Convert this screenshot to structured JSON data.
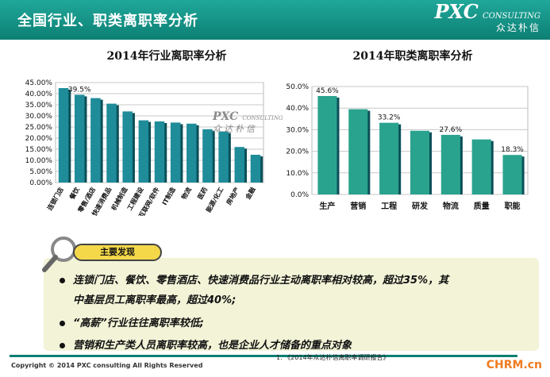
{
  "header": {
    "title": "全国行业、职类离职率分析",
    "logo_main": "PXC",
    "logo_sub": "CONSULTING",
    "logo_cn": "众达朴信"
  },
  "watermark": {
    "main": "PXC",
    "sub": "CONSULTING",
    "cn": "众达朴信"
  },
  "chart_data": [
    {
      "type": "bar",
      "title": "2014年行业离职率分析",
      "categories": [
        "连锁门店",
        "餐饮",
        "零售/酒店",
        "快速消费品",
        "机械制造",
        "工程建设",
        "互联网/软件",
        "IT制造",
        "物流",
        "医药",
        "能源/化工",
        "房地产",
        "金融"
      ],
      "values": [
        42.5,
        39.5,
        38.0,
        35.5,
        32.0,
        28.0,
        27.5,
        27.0,
        26.5,
        24.0,
        23.0,
        16.0,
        12.5
      ],
      "data_labels": [
        null,
        "39.5%",
        null,
        null,
        null,
        null,
        null,
        null,
        null,
        null,
        null,
        null,
        null
      ],
      "ylim": [
        0,
        45
      ],
      "yticks": [
        "0.00%",
        "5.00%",
        "10.00%",
        "15.00%",
        "20.00%",
        "25.00%",
        "30.00%",
        "35.00%",
        "40.00%",
        "45.00%"
      ],
      "bar_color": "#1f8c99",
      "grid": true
    },
    {
      "type": "bar",
      "title": "2014年职类离职率分析",
      "categories": [
        "生产",
        "营销",
        "工程",
        "研发",
        "物流",
        "质量",
        "职能"
      ],
      "values": [
        45.6,
        39.5,
        33.2,
        29.5,
        27.6,
        25.5,
        18.3
      ],
      "data_labels": [
        "45.6%",
        null,
        "33.2%",
        null,
        "27.6%",
        null,
        "18.3%"
      ],
      "ylim": [
        0,
        50
      ],
      "yticks": [
        "0.0%",
        "10.0%",
        "20.0%",
        "30.0%",
        "40.0%",
        "50.0%"
      ],
      "bar_color": "#2aa38e",
      "grid": true
    }
  ],
  "findings": {
    "badge": "主要发现",
    "bullets": [
      "连锁门店、餐饮、零售酒店、快速消费品行业主动离职率相对较高，超过35%，其",
      "中基层员工离职率最高，超过40%;",
      "“高薪”行业往往离职率较低;",
      "营销和生产类人员离职率较高，也是企业人才储备的重点对象"
    ]
  },
  "footer": {
    "copyright": "Copyright © 2014  PXC consulting All Rights Reserved",
    "source": "1.    《2014年众达朴信离职率调研报告》",
    "site": "CHRM.cn"
  }
}
